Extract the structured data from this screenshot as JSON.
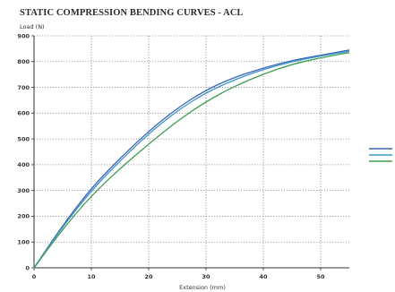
{
  "chart_data": {
    "type": "line",
    "title": "STATIC COMPRESSION BENDING CURVES - ACL",
    "xlabel": "Extension (mm)",
    "ylabel": "Load (N)",
    "xlim": [
      0,
      55
    ],
    "ylim": [
      0,
      900
    ],
    "xticks": [
      0,
      10,
      20,
      30,
      40,
      50
    ],
    "yticks": [
      0,
      100,
      200,
      300,
      400,
      500,
      600,
      700,
      800,
      900
    ],
    "grid": true,
    "legend": "right",
    "series": [
      {
        "color": "#3a64b4",
        "x": [
          0,
          5,
          10,
          15,
          20,
          25,
          30,
          35,
          40,
          45,
          50,
          55
        ],
        "y": [
          0,
          165,
          310,
          425,
          530,
          620,
          690,
          740,
          775,
          805,
          825,
          845
        ]
      },
      {
        "color": "#3f95c8",
        "x": [
          0,
          5,
          10,
          15,
          20,
          25,
          30,
          35,
          40,
          45,
          50,
          55
        ],
        "y": [
          0,
          160,
          300,
          415,
          520,
          610,
          680,
          730,
          770,
          800,
          822,
          840
        ]
      },
      {
        "color": "#3e9e52",
        "x": [
          0,
          5,
          10,
          15,
          20,
          25,
          30,
          35,
          40,
          45,
          50,
          55
        ],
        "y": [
          0,
          150,
          280,
          385,
          480,
          570,
          645,
          705,
          752,
          790,
          815,
          835
        ]
      }
    ]
  }
}
